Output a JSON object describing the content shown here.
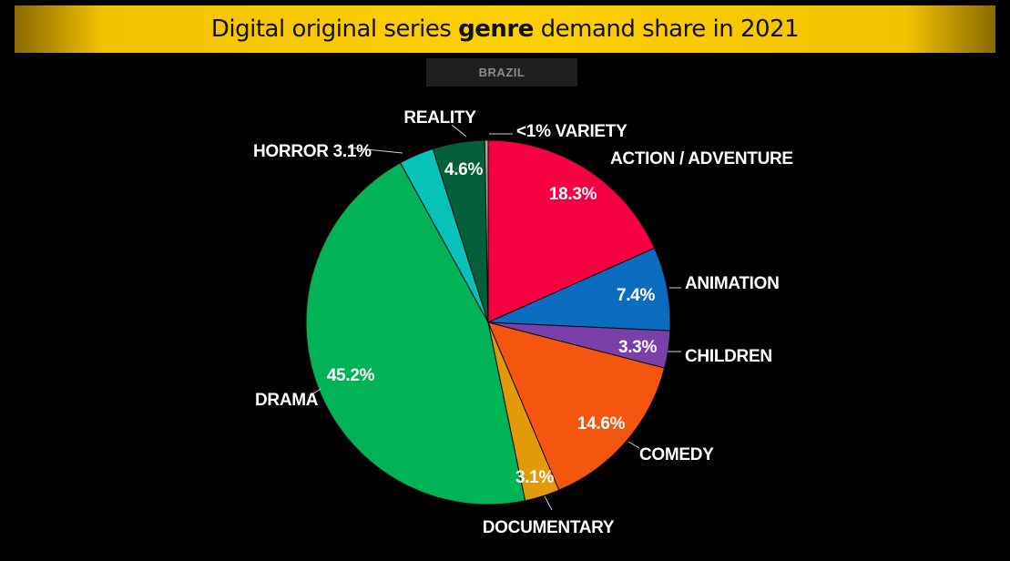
{
  "header": {
    "title_pre": "Digital original series ",
    "title_bold": "genre",
    "title_post": " demand share in 2021",
    "subtitle": "BRAZIL"
  },
  "chart_data": {
    "type": "pie",
    "title": "Digital original series genre demand share in 2021",
    "subtitle": "BRAZIL",
    "slices": [
      {
        "name": "ACTION / ADVENTURE",
        "value": 18.3,
        "value_text": "18.3%",
        "label_text": "ACTION / ADVENTURE",
        "color": "#f50040"
      },
      {
        "name": "ANIMATION",
        "value": 7.4,
        "value_text": "7.4%",
        "label_text": "ANIMATION",
        "color": "#0b6cc0"
      },
      {
        "name": "CHILDREN",
        "value": 3.3,
        "value_text": "3.3%",
        "label_text": "CHILDREN",
        "color": "#7a3fa8"
      },
      {
        "name": "COMEDY",
        "value": 14.6,
        "value_text": "14.6%",
        "label_text": "COMEDY",
        "color": "#f5560f"
      },
      {
        "name": "DOCUMENTARY",
        "value": 3.1,
        "value_text": "3.1%",
        "label_text": "DOCUMENTARY",
        "color": "#e29a0a"
      },
      {
        "name": "DRAMA",
        "value": 45.2,
        "value_text": "45.2%",
        "label_text": "DRAMA",
        "color": "#00b357"
      },
      {
        "name": "HORROR",
        "value": 3.1,
        "value_text": "",
        "label_text": "HORROR 3.1%",
        "color": "#07c2b8"
      },
      {
        "name": "REALITY",
        "value": 4.6,
        "value_text": "4.6%",
        "label_text": "REALITY",
        "color": "#03603a"
      },
      {
        "name": "VARIETY",
        "value": 0.3,
        "value_text": "",
        "label_text": "<1% VARIETY",
        "color": "#a8a8a8"
      }
    ]
  }
}
